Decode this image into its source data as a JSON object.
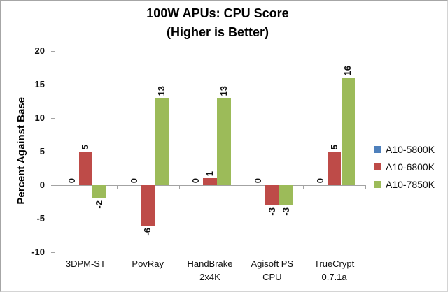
{
  "chart_data": {
    "type": "bar",
    "title": "100W APUs: CPU Score",
    "subtitle": "(Higher is Better)",
    "ylabel": "Percent Against Base",
    "xlabel": "",
    "ylim": [
      -10,
      20
    ],
    "yticks": [
      20,
      15,
      10,
      5,
      0,
      -5,
      -10
    ],
    "grid": false,
    "legend_position": "right",
    "axis_color": "#a3a3a3",
    "categories": [
      "3DPM-ST",
      "PovRay",
      "HandBrake\n2x4K",
      "Agisoft PS\nCPU",
      "TrueCrypt\n0.7.1a"
    ],
    "series": [
      {
        "name": "A10-5800K",
        "color": "#4e80bc",
        "values": [
          0,
          0,
          0,
          0,
          0
        ]
      },
      {
        "name": "A10-6800K",
        "color": "#be4b48",
        "values": [
          5,
          -6,
          1,
          -3,
          5
        ]
      },
      {
        "name": "A10-7850K",
        "color": "#9cbb59",
        "values": [
          -2,
          13,
          13,
          -3,
          16
        ]
      }
    ]
  }
}
